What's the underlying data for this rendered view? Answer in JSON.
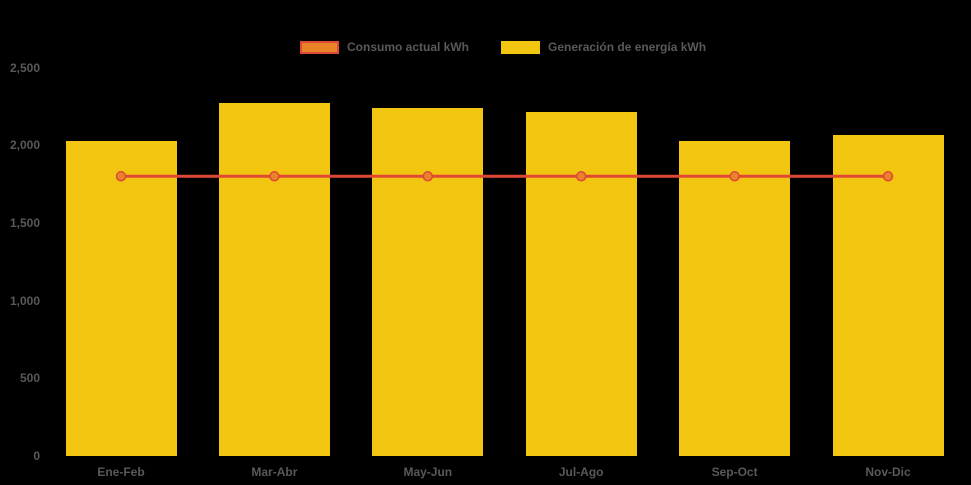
{
  "chart_data": {
    "type": "bar",
    "title": "",
    "categories": [
      "Ene-Feb",
      "Mar-Abr",
      "May-Jun",
      "Jul-Ago",
      "Sep-Oct",
      "Nov-Dic"
    ],
    "series": [
      {
        "name": "Consumo actual kWh",
        "type": "line",
        "color": "#e04836",
        "marker_color": "#e8832a",
        "values": [
          1800,
          1800,
          1800,
          1800,
          1800,
          1800
        ]
      },
      {
        "name": "Generación de energía kWh",
        "type": "bar",
        "color": "#f2c511",
        "values": [
          2030,
          2270,
          2240,
          2215,
          2030,
          2065
        ]
      }
    ],
    "ylabel": "",
    "xlabel": "",
    "ylim": [
      0,
      2500
    ],
    "yticks": [
      0,
      500,
      1000,
      1500,
      2000,
      2500
    ],
    "ytick_labels": [
      "0",
      "500",
      "1,000",
      "1,500",
      "2,000",
      "2,500"
    ],
    "grid": false,
    "legend_position": "top",
    "background": "#000000"
  },
  "colors": {
    "bar_yellow": "#f2c511",
    "line_red": "#e04836",
    "marker_orange": "#e8832a",
    "text_gray": "#58595b",
    "background": "#000000"
  }
}
